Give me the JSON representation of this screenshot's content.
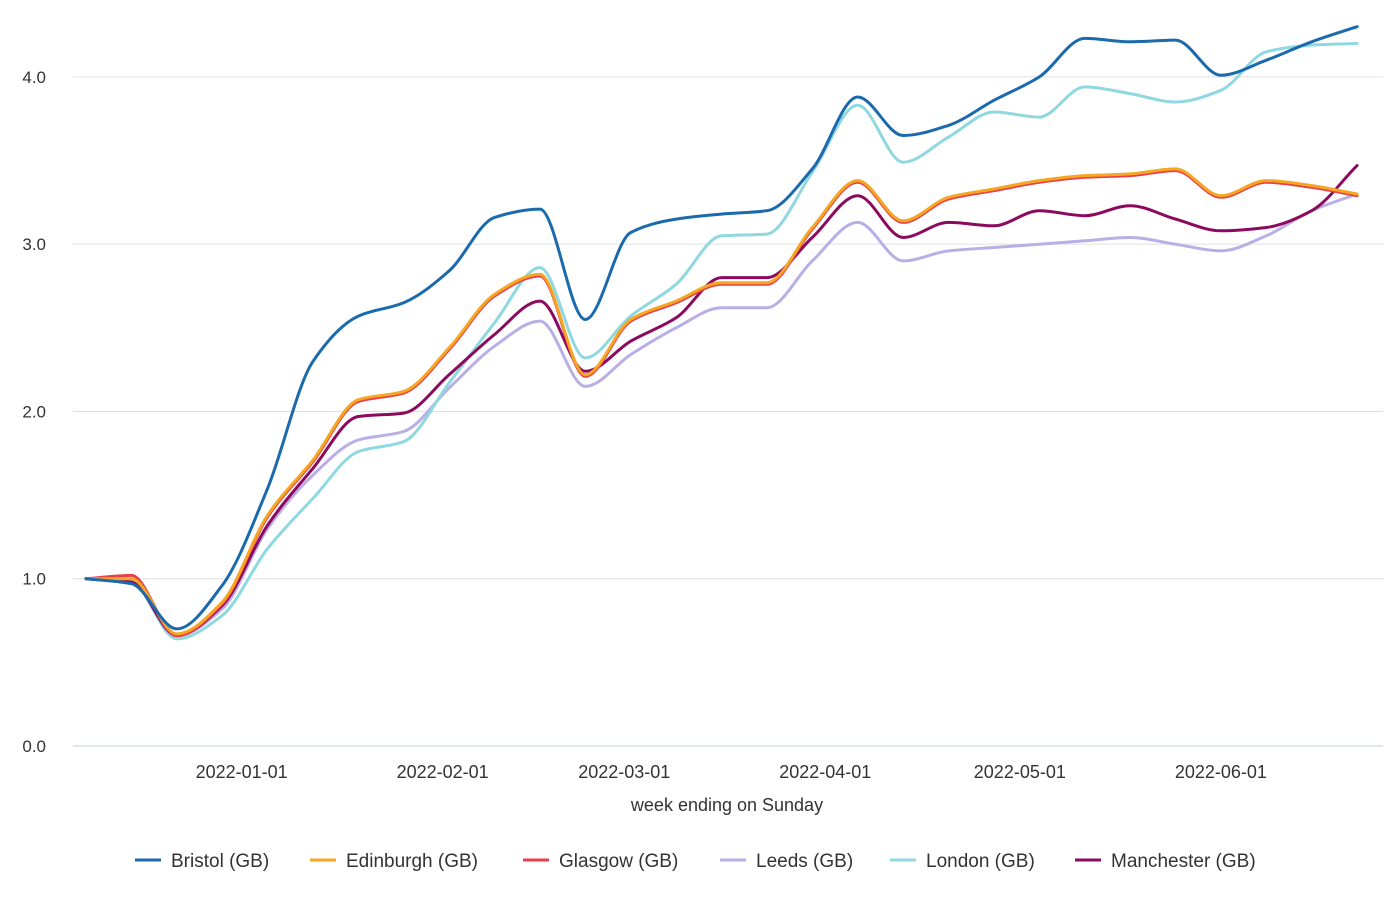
{
  "chart_data": {
    "type": "line",
    "title": "",
    "xlabel": "week ending on Sunday",
    "ylabel": "",
    "ylim": [
      0,
      4.4
    ],
    "yticks": [
      "0.0",
      "1.0",
      "2.0",
      "3.0",
      "4.0"
    ],
    "xlim": [
      "2021-12-06",
      "2022-06-26"
    ],
    "xticks": [
      "2022-01-01",
      "2022-02-01",
      "2022-03-01",
      "2022-04-01",
      "2022-05-01",
      "2022-06-01"
    ],
    "grid": true,
    "legend_position": "bottom",
    "x": [
      "2021-12-08",
      "2021-12-15",
      "2021-12-22",
      "2021-12-29",
      "2022-01-05",
      "2022-01-12",
      "2022-01-19",
      "2022-01-26",
      "2022-02-02",
      "2022-02-09",
      "2022-02-16",
      "2022-02-23",
      "2022-03-02",
      "2022-03-09",
      "2022-03-16",
      "2022-03-23",
      "2022-03-30",
      "2022-04-06",
      "2022-04-13",
      "2022-04-20",
      "2022-04-27",
      "2022-05-04",
      "2022-05-11",
      "2022-05-18",
      "2022-05-25",
      "2022-06-01",
      "2022-06-08",
      "2022-06-15",
      "2022-06-22"
    ],
    "series": [
      {
        "name": "Bristol (GB)",
        "color": "#1a6aad",
        "values": [
          1.0,
          0.97,
          0.7,
          0.96,
          1.54,
          2.3,
          2.57,
          2.65,
          2.84,
          3.16,
          3.21,
          2.55,
          3.07,
          3.15,
          3.18,
          3.2,
          3.45,
          3.88,
          3.65,
          3.71,
          3.86,
          4.0,
          4.23,
          4.21,
          4.22,
          4.01,
          4.1,
          4.21,
          4.3
        ]
      },
      {
        "name": "Edinburgh (GB)",
        "color": "#f5a623",
        "values": [
          1.0,
          1.0,
          0.67,
          0.86,
          1.38,
          1.71,
          2.07,
          2.12,
          2.38,
          2.7,
          2.82,
          2.22,
          2.55,
          2.66,
          2.77,
          2.77,
          3.1,
          3.38,
          3.14,
          3.28,
          3.33,
          3.38,
          3.41,
          3.42,
          3.45,
          3.29,
          3.38,
          3.35,
          3.3
        ]
      },
      {
        "name": "Glasgow (GB)",
        "color": "#e8404a",
        "values": [
          1.0,
          1.02,
          0.66,
          0.85,
          1.37,
          1.7,
          2.06,
          2.11,
          2.37,
          2.69,
          2.81,
          2.21,
          2.54,
          2.65,
          2.76,
          2.76,
          3.09,
          3.37,
          3.13,
          3.27,
          3.32,
          3.37,
          3.4,
          3.41,
          3.44,
          3.28,
          3.37,
          3.34,
          3.29
        ]
      },
      {
        "name": "Leeds (GB)",
        "color": "#b9aee6",
        "values": [
          1.0,
          0.99,
          0.66,
          0.82,
          1.3,
          1.62,
          1.83,
          1.88,
          2.14,
          2.39,
          2.54,
          2.15,
          2.34,
          2.5,
          2.62,
          2.62,
          2.9,
          3.13,
          2.9,
          2.96,
          2.98,
          3.0,
          3.02,
          3.04,
          3.0,
          2.96,
          3.05,
          3.2,
          3.3
        ]
      },
      {
        "name": "London (GB)",
        "color": "#8fd8e0",
        "values": [
          1.0,
          0.98,
          0.64,
          0.78,
          1.18,
          1.48,
          1.76,
          1.82,
          2.17,
          2.53,
          2.86,
          2.32,
          2.57,
          2.76,
          3.05,
          3.06,
          3.43,
          3.83,
          3.49,
          3.64,
          3.79,
          3.76,
          3.94,
          3.9,
          3.85,
          3.92,
          4.15,
          4.19,
          4.2
        ]
      },
      {
        "name": "Manchester (GB)",
        "color": "#8b0a5e",
        "values": [
          1.0,
          0.98,
          0.66,
          0.84,
          1.32,
          1.66,
          1.97,
          1.99,
          2.22,
          2.46,
          2.66,
          2.24,
          2.42,
          2.56,
          2.8,
          2.8,
          3.04,
          3.29,
          3.04,
          3.13,
          3.11,
          3.2,
          3.17,
          3.23,
          3.15,
          3.08,
          3.1,
          3.2,
          3.47
        ]
      }
    ]
  }
}
